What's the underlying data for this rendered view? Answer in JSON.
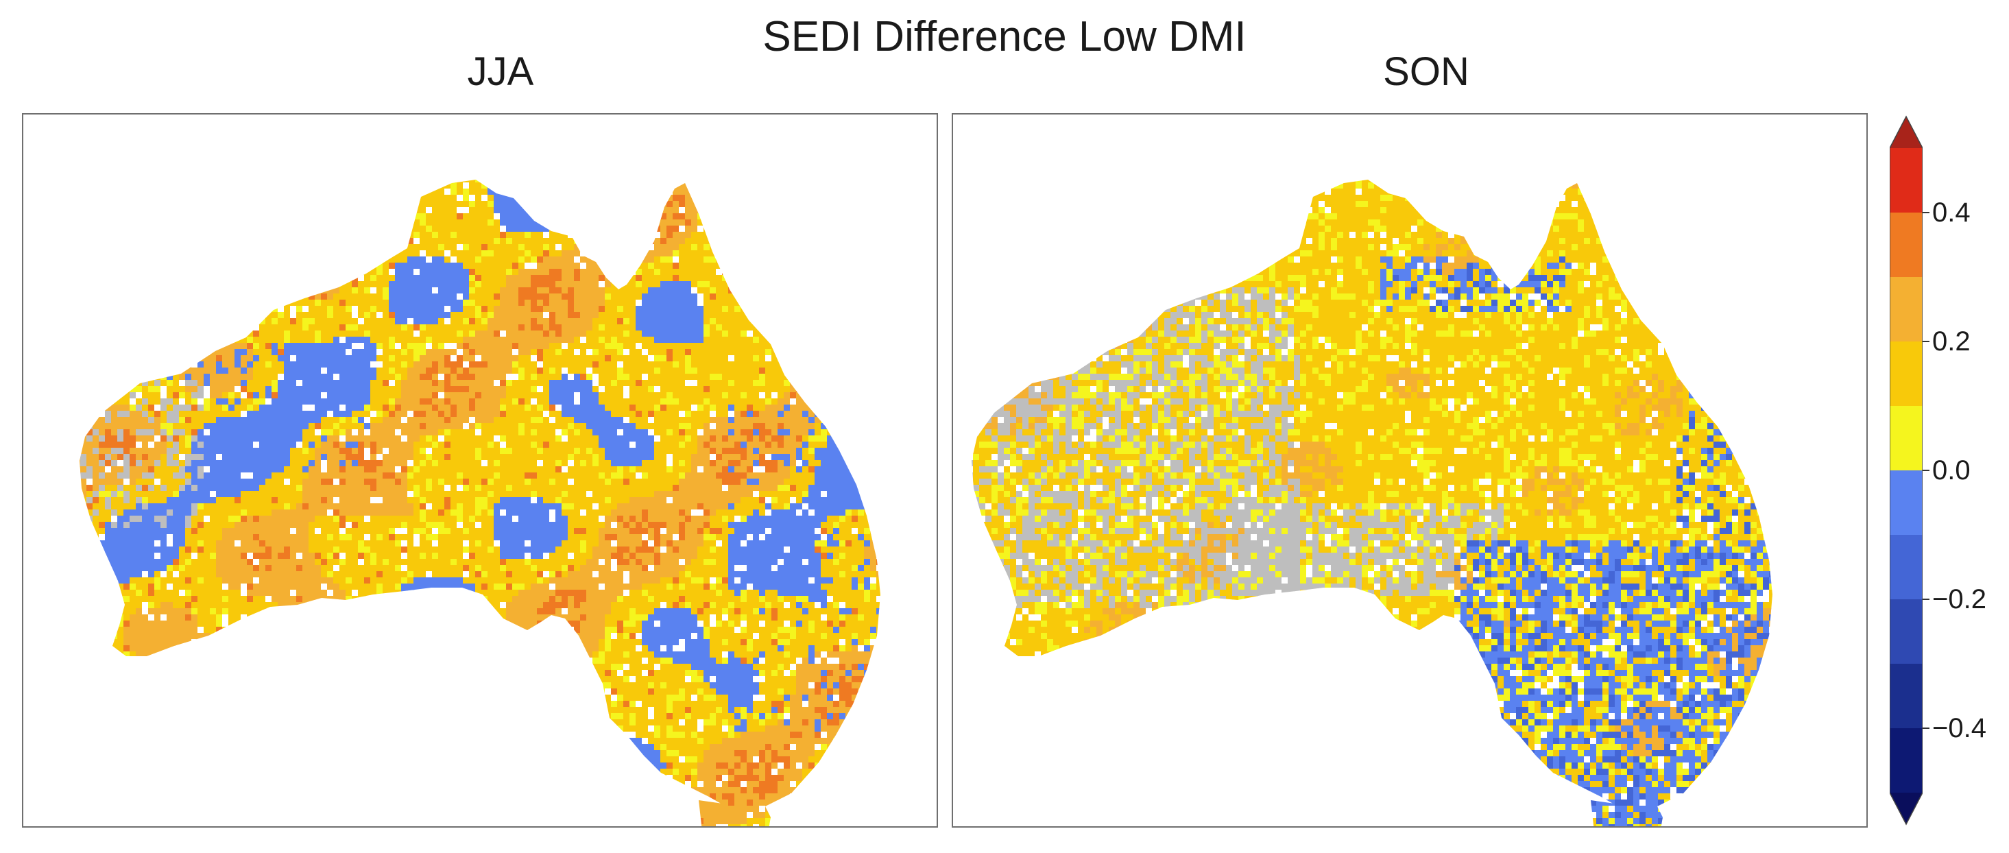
{
  "title": "SEDI Difference Low DMI",
  "panels": [
    {
      "label": "JJA"
    },
    {
      "label": "SON"
    }
  ],
  "colorbar": {
    "levels": [
      {
        "from": -0.5,
        "to": -0.4,
        "color": "#0d1973"
      },
      {
        "from": -0.4,
        "to": -0.3,
        "color": "#1b2f8e"
      },
      {
        "from": -0.3,
        "to": -0.2,
        "color": "#2f49b2"
      },
      {
        "from": -0.2,
        "to": -0.1,
        "color": "#4466d6"
      },
      {
        "from": -0.1,
        "to": 0.0,
        "color": "#5a82f0"
      },
      {
        "from": 0.0,
        "to": 0.1,
        "color": "#f5f51e"
      },
      {
        "from": 0.1,
        "to": 0.2,
        "color": "#f8c90a"
      },
      {
        "from": 0.2,
        "to": 0.3,
        "color": "#f4b032"
      },
      {
        "from": 0.3,
        "to": 0.4,
        "color": "#ef7a22"
      },
      {
        "from": 0.4,
        "to": 0.5,
        "color": "#e02b18"
      }
    ],
    "ticks": [
      "0.4",
      "0.2",
      "0.0",
      "−0.2",
      "−0.4"
    ],
    "tick_values": [
      0.4,
      0.2,
      0.0,
      -0.2,
      -0.4
    ],
    "extend_colors": {
      "max": "#a8231a",
      "min": "#0a0e5c"
    },
    "missing_color": "#bebebe"
  }
}
